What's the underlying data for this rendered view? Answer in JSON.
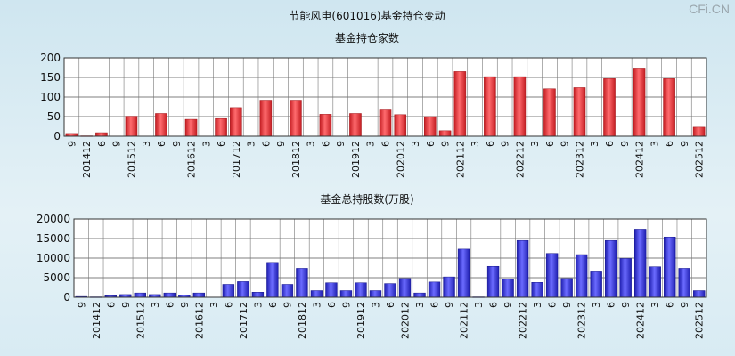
{
  "watermark": "CFi.CN",
  "title": "节能风电(601016)基金持仓变动",
  "chart_data": [
    {
      "type": "bar",
      "title": "基金持仓家数",
      "ylim": [
        0,
        200
      ],
      "yticks": [
        0,
        50,
        100,
        150,
        200
      ],
      "bar_color": "#e8353a",
      "grid": true,
      "categories": [
        "9",
        "201412",
        "6",
        "9",
        "201512",
        "3",
        "6",
        "9",
        "201612",
        "3",
        "6",
        "201712",
        "3",
        "6",
        "9",
        "201812",
        "3",
        "6",
        "9",
        "201912",
        "3",
        "6",
        "202012",
        "3",
        "6",
        "9",
        "202112",
        "3",
        "6",
        "9",
        "202212",
        "3",
        "6",
        "9",
        "202312",
        "3",
        "6",
        "9",
        "202412",
        "3",
        "6",
        "9",
        "202512"
      ],
      "values": [
        7,
        1,
        9,
        0,
        51,
        0,
        58,
        0,
        43,
        0,
        45,
        73,
        0,
        92,
        0,
        92,
        0,
        56,
        0,
        58,
        0,
        67,
        55,
        0,
        50,
        14,
        165,
        0,
        152,
        0,
        152,
        0,
        121,
        0,
        124,
        0,
        147,
        0,
        174,
        0,
        147,
        0,
        23
      ]
    },
    {
      "type": "bar",
      "title": "基金总持股数(万股)",
      "ylim": [
        0,
        20000
      ],
      "yticks": [
        0,
        5000,
        10000,
        15000,
        20000
      ],
      "bar_color": "#3535d6",
      "grid": true,
      "categories": [
        "9",
        "201412",
        "6",
        "9",
        "201512",
        "3",
        "6",
        "9",
        "201612",
        "3",
        "6",
        "201712",
        "3",
        "6",
        "9",
        "201812",
        "3",
        "6",
        "9",
        "201912",
        "3",
        "6",
        "202012",
        "3",
        "6",
        "9",
        "202112",
        "3",
        "6",
        "9",
        "202212",
        "3",
        "6",
        "9",
        "202312",
        "3",
        "6",
        "9",
        "202412",
        "3",
        "6",
        "9",
        "202512"
      ],
      "values": [
        200,
        100,
        400,
        700,
        1100,
        700,
        1100,
        600,
        1100,
        0,
        3300,
        4000,
        1300,
        8900,
        3300,
        7400,
        1700,
        3700,
        1700,
        3700,
        1700,
        3500,
        4800,
        1100,
        3900,
        5200,
        12300,
        100,
        7900,
        4700,
        14500,
        3800,
        11200,
        4800,
        10900,
        6500,
        14500,
        9900,
        17400,
        7800,
        15400,
        7400,
        1700
      ]
    }
  ]
}
